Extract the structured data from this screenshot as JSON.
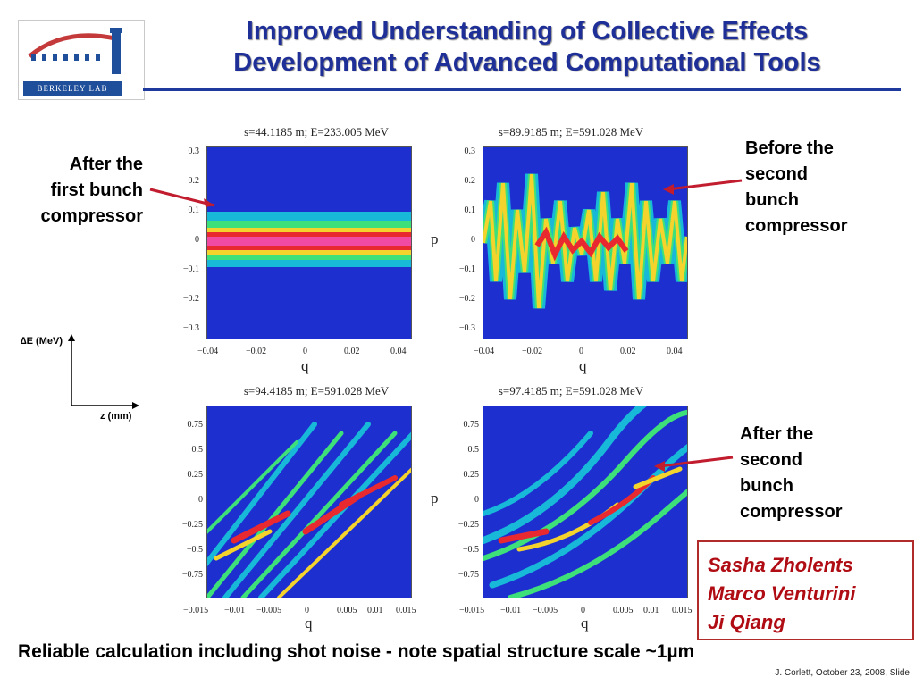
{
  "logo": {
    "text": "BERKELEY LAB"
  },
  "title": {
    "line1": "Improved Understanding of Collective Effects",
    "line2": "Development of Advanced Computational Tools"
  },
  "plots": [
    {
      "title": "s=44.1185 m; E=233.005 MeV",
      "ylabel": "",
      "xlabel": "q",
      "yticks": [
        "0.3",
        "0.2",
        "0.1",
        "0",
        "−0.1",
        "−0.2",
        "−0.3"
      ],
      "xticks": [
        "−0.04",
        "−0.02",
        "0",
        "0.02",
        "0.04"
      ]
    },
    {
      "title": "s=89.9185 m; E=591.028 MeV",
      "ylabel": "p",
      "xlabel": "q",
      "yticks": [
        "0.3",
        "0.2",
        "0.1",
        "0",
        "−0.1",
        "−0.2",
        "−0.3"
      ],
      "xticks": [
        "−0.04",
        "−0.02",
        "0",
        "0.02",
        "0.04"
      ]
    },
    {
      "title": "s=94.4185 m; E=591.028 MeV",
      "ylabel": "",
      "xlabel": "q",
      "yticks": [
        "0.75",
        "0.5",
        "0.25",
        "0",
        "−0.25",
        "−0.5",
        "−0.75"
      ],
      "xticks": [
        "−0.015",
        "−0.01",
        "−0.005",
        "0",
        "0.005",
        "0.01",
        "0.015"
      ]
    },
    {
      "title": "s=97.4185 m; E=591.028 MeV",
      "ylabel": "p",
      "xlabel": "q",
      "yticks": [
        "0.75",
        "0.5",
        "0.25",
        "0",
        "−0.25",
        "−0.5",
        "−0.75"
      ],
      "xticks": [
        "−0.015",
        "−0.01",
        "−0.005",
        "0",
        "0.005",
        "0.01",
        "0.015"
      ]
    }
  ],
  "annotations": {
    "after_first": [
      "After the",
      "first bunch",
      "compressor"
    ],
    "before_second": [
      "Before the",
      "second",
      "bunch",
      "compressor"
    ],
    "after_second": [
      "After the",
      "second",
      "bunch",
      "compressor"
    ]
  },
  "axes_legend": {
    "y": "∆E (MeV)",
    "x": "z (mm)"
  },
  "authors": [
    "Sasha Zholents",
    "Marco Venturini",
    "Ji Qiang"
  ],
  "bottom_text": "Reliable calculation including shot noise - note spatial structure scale  ~1µm",
  "footer": "J. Corlett, October 23, 2008, Slide"
}
